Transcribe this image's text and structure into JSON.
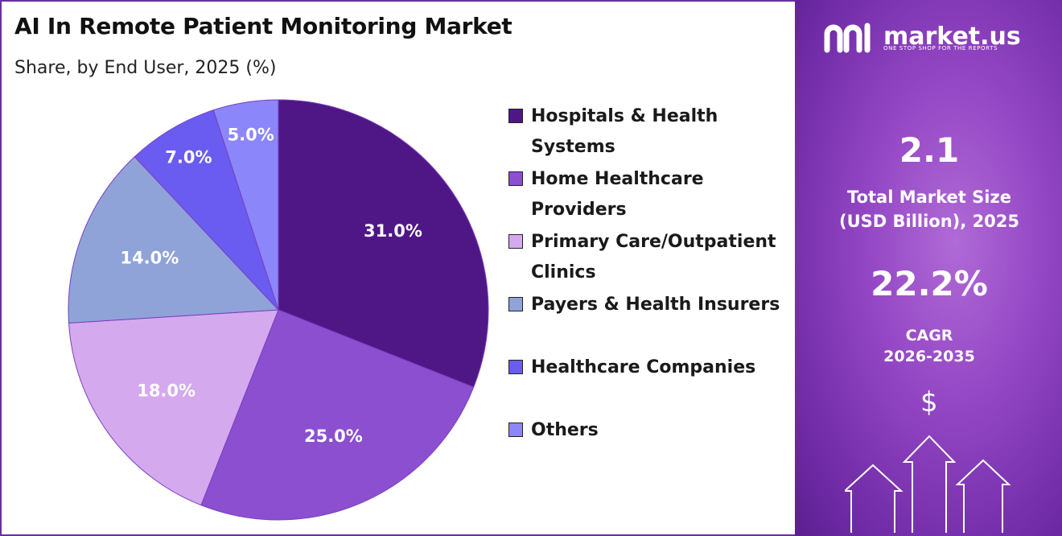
{
  "title": "AI In Remote Patient Monitoring Market",
  "subtitle": "Share, by End User, 2025 (%)",
  "chart_data": {
    "type": "pie",
    "title": "AI In Remote Patient Monitoring Market",
    "subtitle": "Share, by End User, 2025 (%)",
    "categories": [
      "Hospitals & Health Systems",
      "Home Healthcare Providers",
      "Primary Care/Outpatient Clinics",
      "Payers & Health Insurers",
      "Healthcare Companies",
      "Others"
    ],
    "values": [
      31.0,
      25.0,
      18.0,
      14.0,
      7.0,
      5.0
    ],
    "labels": [
      "31.0%",
      "25.0%",
      "18.0%",
      "14.0%",
      "7.0%",
      "5.0%"
    ],
    "colors": [
      "#4f1786",
      "#8b4fd0",
      "#d5a9ee",
      "#8fa3d9",
      "#6a5cf0",
      "#8c86fb"
    ],
    "label_colors": [
      "#ffffff",
      "#ffffff",
      "#ffffff",
      "#ffffff",
      "#ffffff",
      "#ffffff"
    ],
    "start_angle_deg": 0,
    "direction": "clockwise",
    "legend_position": "right"
  },
  "legend": [
    {
      "lines": [
        "Hospitals & Health",
        "Systems"
      ],
      "color": "#4f1786"
    },
    {
      "lines": [
        "Home Healthcare",
        "Providers"
      ],
      "color": "#8b4fd0"
    },
    {
      "lines": [
        "Primary Care/Outpatient",
        "Clinics"
      ],
      "color": "#d5a9ee"
    },
    {
      "lines": [
        "Payers & Health Insurers"
      ],
      "color": "#8fa3d9"
    },
    {
      "lines": [
        "Healthcare Companies"
      ],
      "color": "#6a5cf0"
    },
    {
      "lines": [
        "Others"
      ],
      "color": "#8c86fb"
    }
  ],
  "sidebar": {
    "logo_text": "market.us",
    "tagline": "ONE STOP SHOP FOR THE REPORTS",
    "market_size_value": "2.1",
    "market_size_label_1": "Total Market Size",
    "market_size_label_2": "(USD Billion), 2025",
    "cagr_value": "22.2%",
    "cagr_label_1": "CAGR",
    "cagr_label_2": "2026-2035",
    "dollar_symbol": "$",
    "logo_icon": "market-us-logo-icon",
    "decor_icon": "upward-arrows-icon",
    "accent_color": "#6f2aa6"
  }
}
